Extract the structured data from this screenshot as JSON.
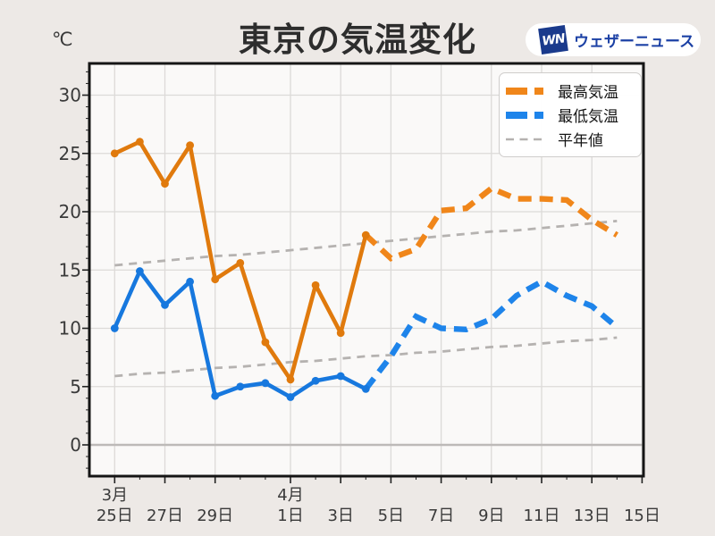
{
  "title": "東京の気温変化",
  "unit_label": "℃",
  "logo": {
    "mark": "WN",
    "text": "ウェザーニュース"
  },
  "legend": {
    "max_label": "最高気温",
    "min_label": "最低気温",
    "normal_label": "平年値"
  },
  "colors": {
    "max_line": "#E07A0D",
    "max_dashed": "#F0861A",
    "min_line": "#1778DE",
    "min_dashed": "#1E84EA",
    "normal_line": "#B5B2B0",
    "grid": "#DCDAD8",
    "zero_line": "#BDBAB8",
    "plot_bg": "#FAF9F8",
    "page_bg": "#EDE9E6",
    "border": "#151515",
    "tick_text": "#3A3A3A"
  },
  "chart_data": {
    "type": "line",
    "title": "東京の気温変化",
    "ylabel": "℃",
    "ylim": [
      -2.7,
      32.7
    ],
    "grid": true,
    "legend_position": "upper right",
    "zero_line": 0,
    "dates": [
      "3/25",
      "3/26",
      "3/27",
      "3/28",
      "3/29",
      "3/30",
      "3/31",
      "4/1",
      "4/2",
      "4/3",
      "4/4",
      "4/5",
      "4/6",
      "4/7",
      "4/8",
      "4/9",
      "4/10",
      "4/11",
      "4/12",
      "4/13",
      "4/14",
      "4/15"
    ],
    "y_ticks": [
      0,
      5,
      10,
      15,
      20,
      25,
      30
    ],
    "x_major_ticks": [
      {
        "index": 0,
        "label": "25日",
        "month": "3月"
      },
      {
        "index": 2,
        "label": "27日"
      },
      {
        "index": 4,
        "label": "29日"
      },
      {
        "index": 7,
        "label": "1日",
        "month": "4月"
      },
      {
        "index": 9,
        "label": "3日"
      },
      {
        "index": 11,
        "label": "5日"
      },
      {
        "index": 13,
        "label": "7日"
      },
      {
        "index": 15,
        "label": "9日"
      },
      {
        "index": 17,
        "label": "11日"
      },
      {
        "index": 19,
        "label": "13日"
      },
      {
        "index": 21,
        "label": "15日"
      }
    ],
    "series": [
      {
        "name": "最高気温",
        "style": "observed-solid-then-forecast-dashed",
        "solid_until_index": 10,
        "values": [
          25.0,
          26.0,
          22.4,
          25.7,
          14.2,
          15.6,
          8.8,
          5.6,
          13.7,
          9.6,
          18.0,
          16.0,
          16.8,
          20.1,
          20.3,
          22.0,
          21.1,
          21.1,
          21.0,
          19.3,
          18.0,
          null
        ]
      },
      {
        "name": "最低気温",
        "style": "observed-solid-then-forecast-dashed",
        "solid_until_index": 10,
        "values": [
          10.0,
          14.9,
          12.0,
          14.0,
          4.2,
          5.0,
          5.3,
          4.1,
          5.5,
          5.9,
          4.8,
          7.6,
          11.0,
          10.0,
          9.9,
          10.8,
          12.8,
          14.0,
          12.8,
          11.9,
          10.1,
          null
        ]
      },
      {
        "name": "平年値(最高)",
        "style": "dashed-thin",
        "values": [
          15.4,
          15.6,
          15.8,
          16.0,
          16.2,
          16.3,
          16.5,
          16.7,
          16.9,
          17.1,
          17.3,
          17.5,
          17.7,
          17.9,
          18.1,
          18.3,
          18.4,
          18.6,
          18.8,
          19.0,
          19.2,
          null
        ]
      },
      {
        "name": "平年値(最低)",
        "style": "dashed-thin",
        "values": [
          5.9,
          6.1,
          6.2,
          6.4,
          6.6,
          6.7,
          6.9,
          7.1,
          7.2,
          7.4,
          7.6,
          7.7,
          7.9,
          8.0,
          8.2,
          8.4,
          8.5,
          8.7,
          8.9,
          9.0,
          9.2,
          null
        ]
      }
    ]
  }
}
